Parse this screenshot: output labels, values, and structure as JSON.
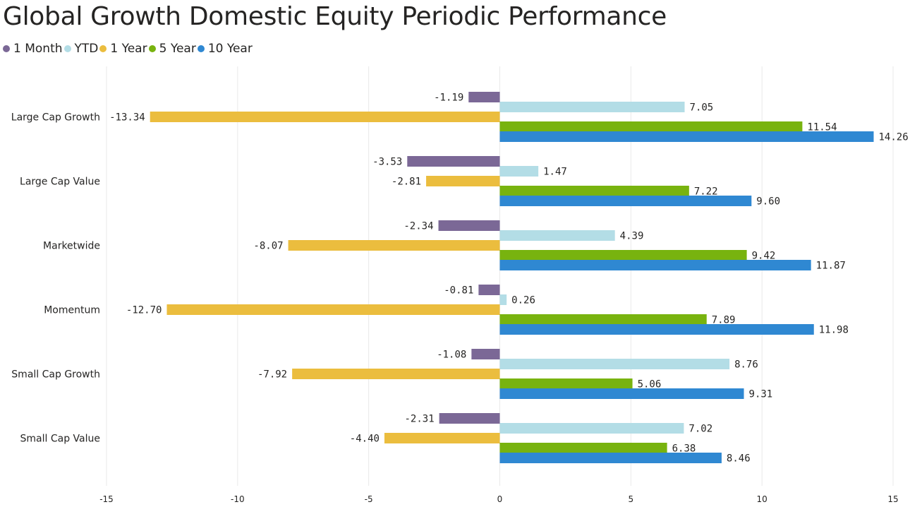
{
  "chart_data": {
    "type": "bar",
    "orientation": "horizontal",
    "title": "Global Growth Domestic Equity Periodic Performance",
    "categories": [
      "Large Cap Growth",
      "Large Cap Value",
      "Marketwide",
      "Momentum",
      "Small Cap Growth",
      "Small Cap Value"
    ],
    "series": [
      {
        "name": "1 Month",
        "color": "#7b6896",
        "values": [
          -1.19,
          -3.53,
          -2.34,
          -0.81,
          -1.08,
          -2.31
        ]
      },
      {
        "name": "YTD",
        "color": "#b3dde6",
        "values": [
          7.05,
          1.47,
          4.39,
          0.26,
          8.76,
          7.02
        ]
      },
      {
        "name": "1 Year",
        "color": "#ebbd3e",
        "values": [
          -13.34,
          -2.81,
          -8.07,
          -12.7,
          -7.92,
          -4.4
        ]
      },
      {
        "name": "5 Year",
        "color": "#78b30f",
        "values": [
          11.54,
          7.22,
          9.42,
          7.89,
          5.06,
          6.38
        ]
      },
      {
        "name": "10 Year",
        "color": "#2f88d2",
        "values": [
          14.26,
          9.6,
          11.87,
          11.98,
          9.31,
          8.46
        ]
      }
    ],
    "xlim": [
      -15,
      15
    ],
    "xticks": [
      -15,
      -10,
      -5,
      0,
      5,
      10,
      15
    ],
    "legend_position": "top-left",
    "grid": true
  }
}
